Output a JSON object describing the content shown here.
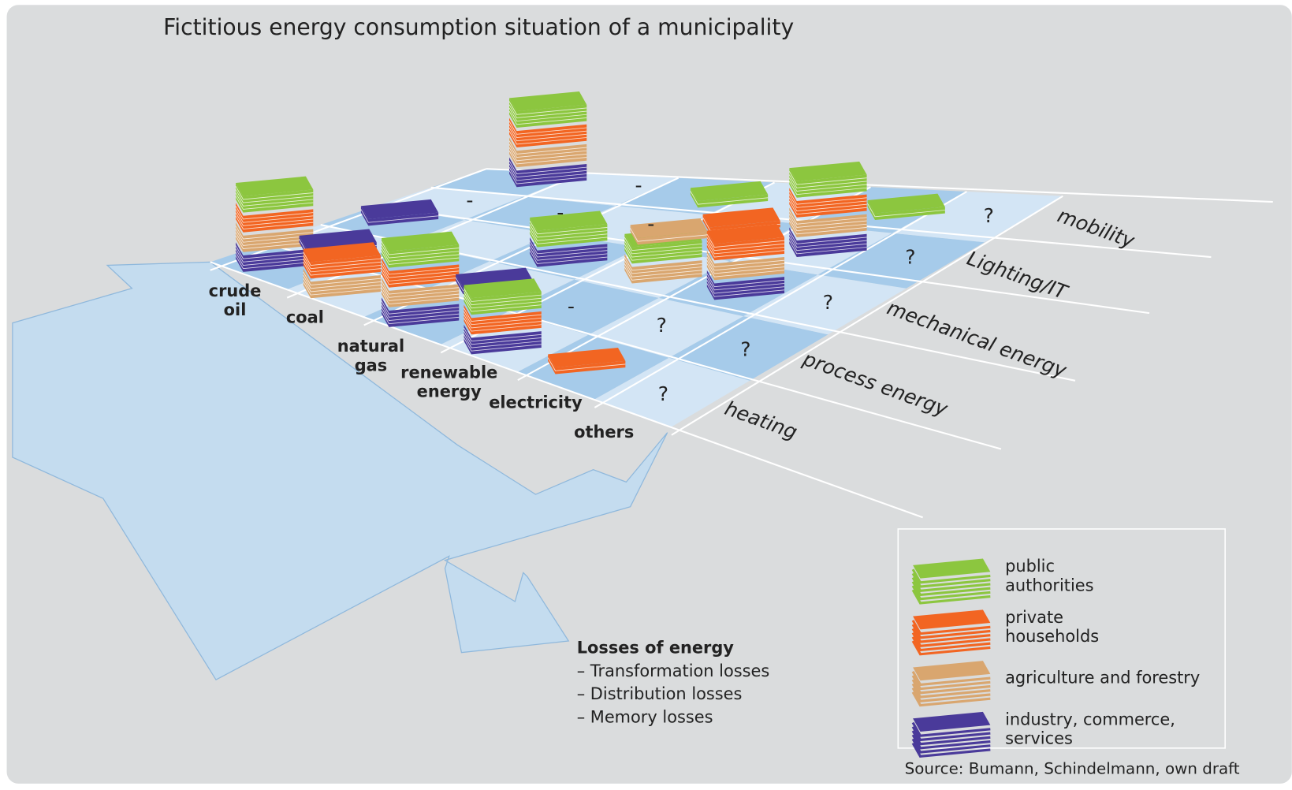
{
  "title": "Fictitious energy consumption situation of a municipality",
  "columns": [
    [
      "crude",
      "oil"
    ],
    [
      "coal"
    ],
    [
      "natural",
      "gas"
    ],
    [
      "renewable",
      "energy"
    ],
    [
      "electricity"
    ],
    [
      "others"
    ]
  ],
  "rows": [
    "heating",
    "process energy",
    "mechanical energy",
    "Lighting/IT",
    "mobility"
  ],
  "cell_marks": [
    "-",
    "-",
    "-",
    "-",
    "-",
    "?",
    "?",
    "?",
    "?",
    "?",
    "?"
  ],
  "legend": [
    [
      "public",
      "authorities"
    ],
    [
      "private",
      "households"
    ],
    [
      "agriculture and forestry"
    ],
    [
      "industry, commerce,",
      "services"
    ]
  ],
  "losses": {
    "title": "Losses of energy",
    "items": [
      "– Transformation losses",
      "– Distribution losses",
      "– Memory losses"
    ]
  },
  "source": "Source: Bumann, Schindelmann, own draft"
}
